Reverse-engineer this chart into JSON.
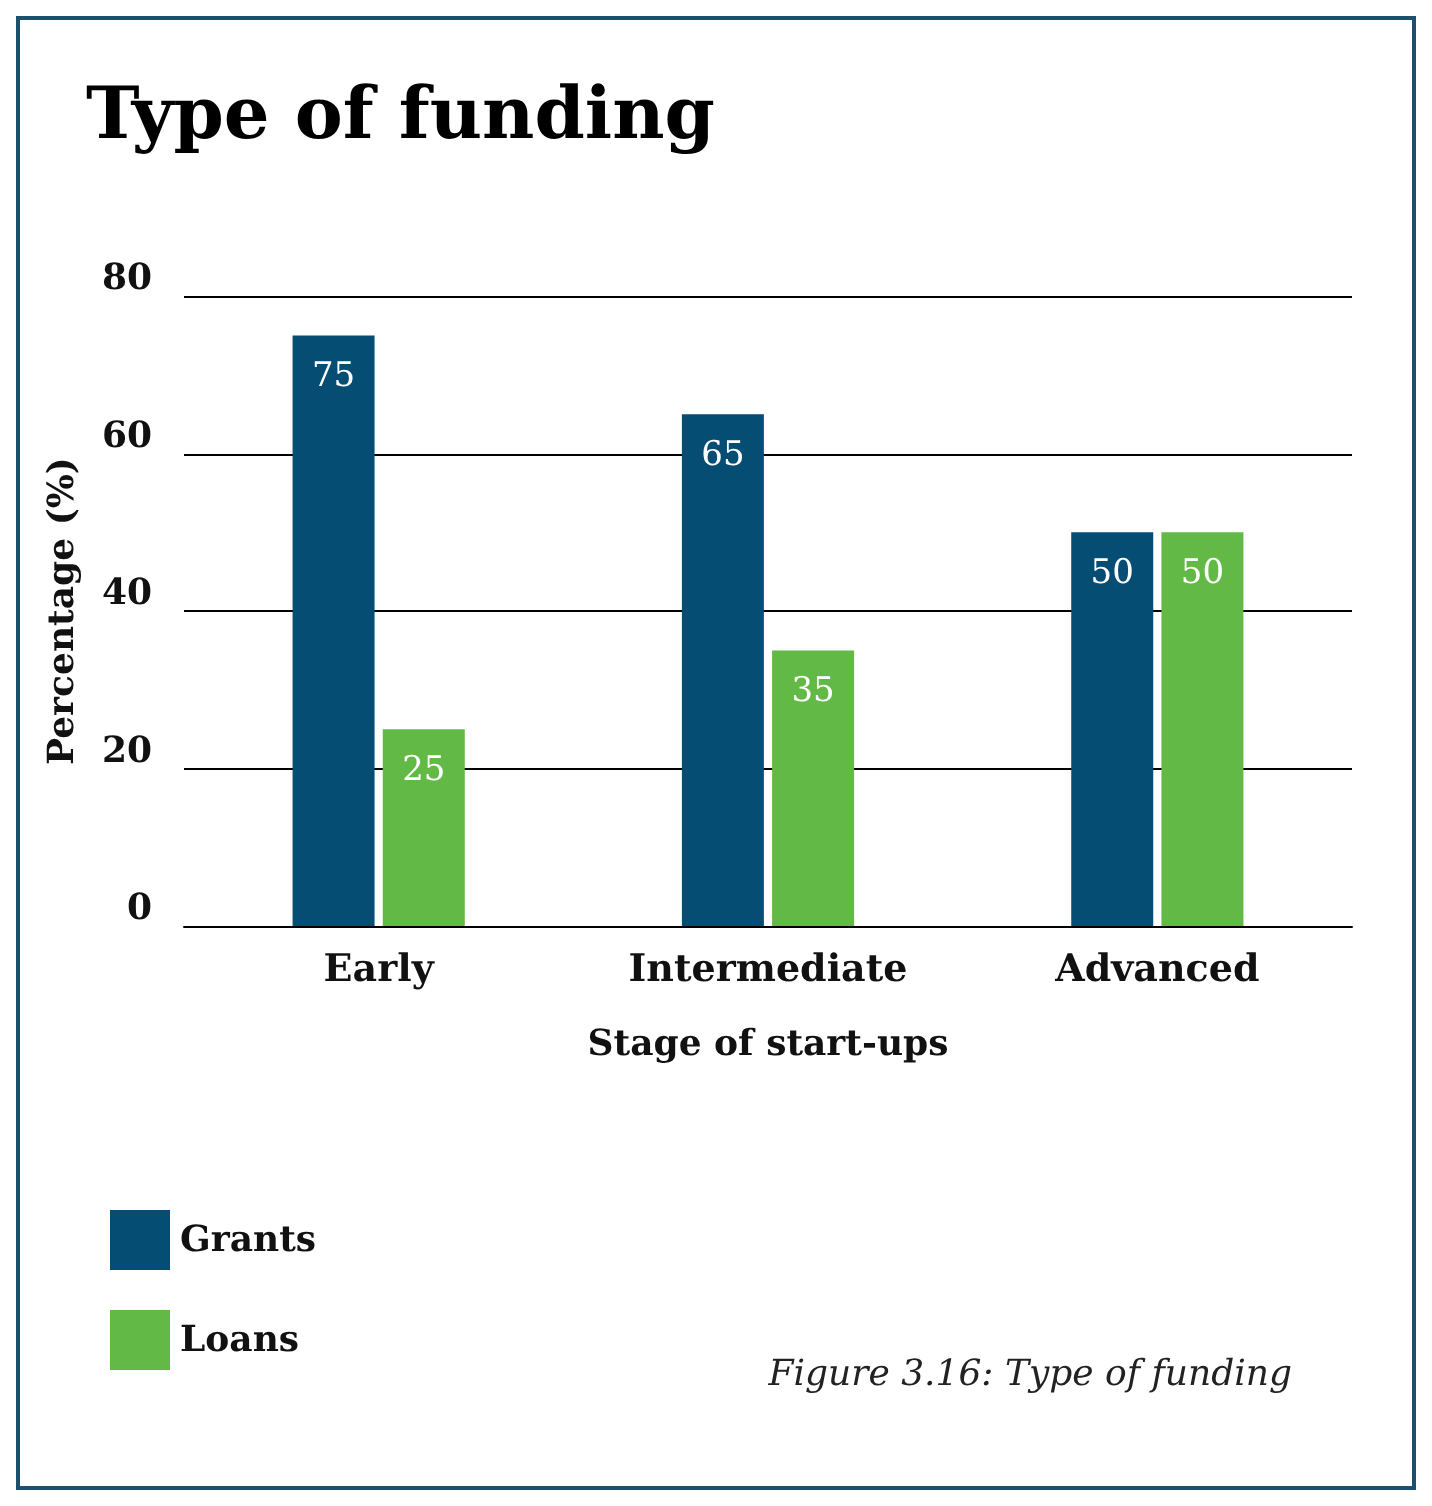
{
  "chart_data": {
    "type": "bar",
    "title": "Type of funding",
    "xlabel": "Stage of start-ups",
    "ylabel": "Percentage (%)",
    "categories": [
      "Early",
      "Intermediate",
      "Advanced"
    ],
    "series": [
      {
        "name": "Grants",
        "color": "#064d73",
        "values": [
          75,
          65,
          50
        ]
      },
      {
        "name": "Loans",
        "color": "#63b946",
        "values": [
          25,
          35,
          50
        ]
      }
    ],
    "ylim": [
      0,
      80
    ],
    "yticks": [
      0,
      20,
      40,
      60,
      80
    ],
    "grid": "y",
    "legend": "bottom left",
    "data_labels": true,
    "annotations": [
      "Figure 3.16: Type of funding"
    ]
  }
}
